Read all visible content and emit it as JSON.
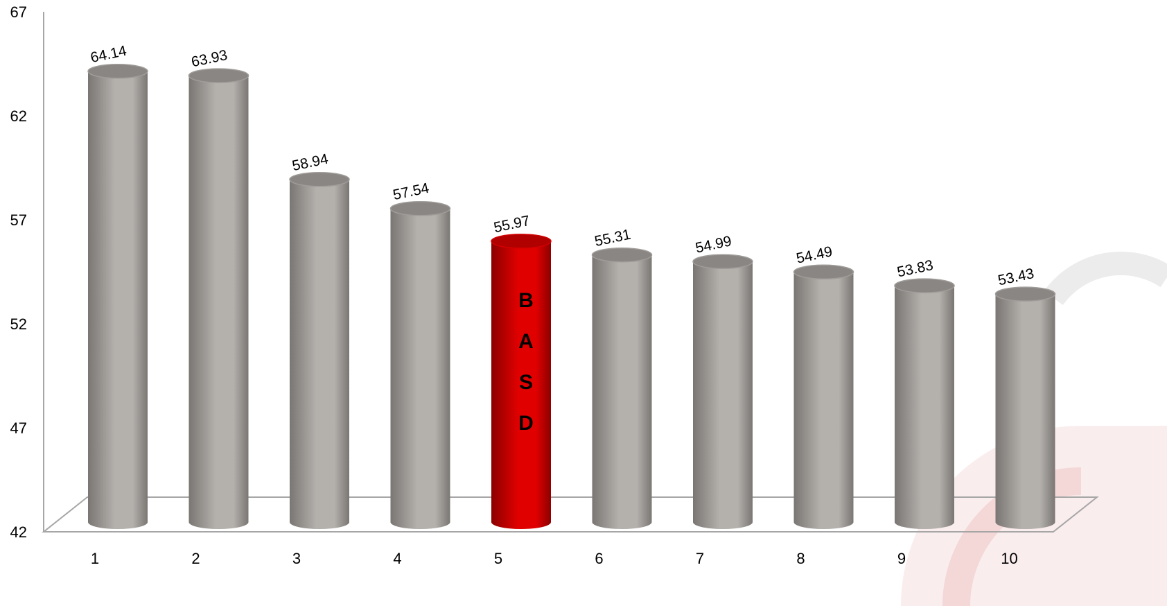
{
  "chart_data": {
    "type": "bar",
    "style": "3d-cylinder",
    "categories": [
      "1",
      "2",
      "3",
      "4",
      "5",
      "6",
      "7",
      "8",
      "9",
      "10"
    ],
    "values": [
      64.14,
      63.93,
      58.94,
      57.54,
      55.97,
      55.31,
      54.99,
      54.49,
      53.83,
      53.43
    ],
    "y_ticks": [
      "42",
      "47",
      "52",
      "57",
      "62",
      "67"
    ],
    "ylim": [
      42,
      67
    ],
    "highlight_index": 4,
    "highlight_text": [
      "B",
      "A",
      "S",
      "D"
    ],
    "title": "",
    "xlabel": "",
    "ylabel": "",
    "grid": false,
    "colors": {
      "bar": "#b4b0ac",
      "bar_dark": "#7a7673",
      "bar_top": "#8a8683",
      "highlight": "#e00000",
      "highlight_dark": "#8c0000",
      "highlight_top": "#b00000",
      "axis": "#a6a6a6"
    }
  }
}
